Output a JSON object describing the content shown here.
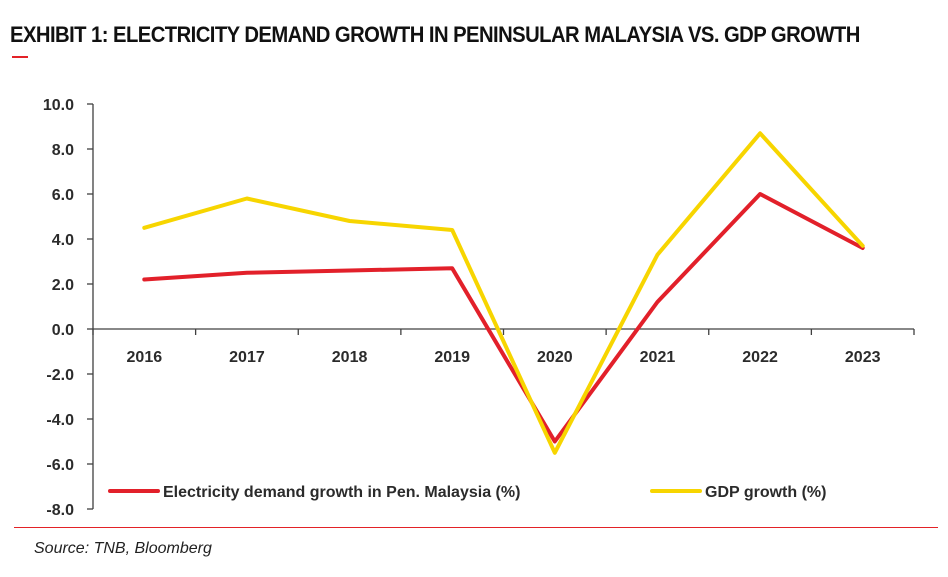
{
  "title": "EXHIBIT 1: ELECTRICITY DEMAND GROWTH IN PENINSULAR MALAYSIA VS. GDP GROWTH",
  "source": "Source: TNB, Bloomberg",
  "colors": {
    "accent": "#e32227",
    "electricity": "#e2202a",
    "gdp": "#f7d500",
    "axis": "#404040",
    "text": "#2b2b2b"
  },
  "chart_data": {
    "type": "line",
    "categories": [
      "2016",
      "2017",
      "2018",
      "2019",
      "2020",
      "2021",
      "2022",
      "2023"
    ],
    "ylim": [
      -8.0,
      10.0
    ],
    "yticks": [
      "10.0",
      "8.0",
      "6.0",
      "4.0",
      "2.0",
      "0.0",
      "-2.0",
      "-4.0",
      "-6.0",
      "-8.0"
    ],
    "xlabel": "",
    "ylabel": "",
    "grid": false,
    "legend_position": "bottom",
    "series": [
      {
        "name": "Electricity demand growth  in Pen. Malaysia (%)",
        "values": [
          2.2,
          2.5,
          2.6,
          2.7,
          -5.0,
          1.2,
          6.0,
          3.6
        ],
        "color": "#e2202a"
      },
      {
        "name": "GDP growth (%)",
        "values": [
          4.5,
          5.8,
          4.8,
          4.4,
          -5.5,
          3.3,
          8.7,
          3.7
        ],
        "color": "#f7d500"
      }
    ]
  }
}
